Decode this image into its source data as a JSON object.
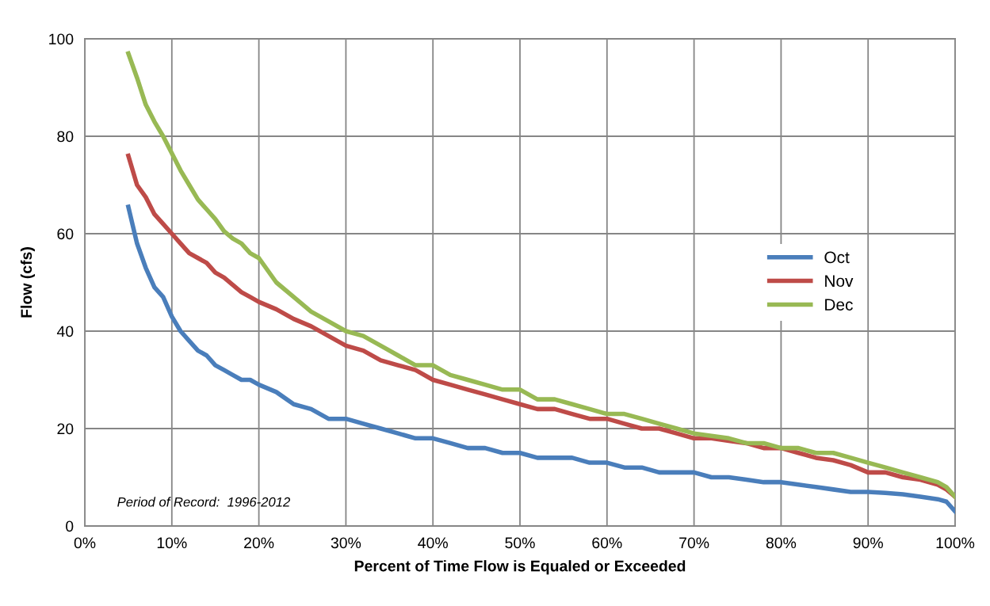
{
  "chart_data": {
    "type": "line",
    "xlabel": "Percent of Time Flow is Equaled or Exceeded",
    "ylabel": "Flow (cfs)",
    "x": [
      5,
      6,
      7,
      8,
      9,
      10,
      11,
      12,
      13,
      14,
      15,
      16,
      17,
      18,
      19,
      20,
      22,
      24,
      26,
      28,
      30,
      32,
      34,
      36,
      38,
      40,
      42,
      44,
      46,
      48,
      50,
      52,
      54,
      56,
      58,
      60,
      62,
      64,
      66,
      68,
      70,
      72,
      74,
      76,
      78,
      80,
      82,
      84,
      86,
      88,
      90,
      92,
      94,
      96,
      98,
      99,
      100
    ],
    "series": [
      {
        "name": "Oct",
        "color": "#4a7ebb",
        "values": [
          65.5,
          58,
          53,
          49,
          47,
          43,
          40,
          38,
          36,
          35,
          33,
          32,
          31,
          30,
          30,
          29,
          27.5,
          25,
          24,
          22,
          22,
          21,
          20,
          19,
          18,
          18,
          17,
          16,
          16,
          15,
          15,
          14,
          14,
          14,
          13,
          13,
          12,
          12,
          11,
          11,
          11,
          10,
          10,
          9.5,
          9,
          9,
          8.5,
          8,
          7.5,
          7,
          7,
          6.8,
          6.5,
          6,
          5.5,
          5,
          3
        ]
      },
      {
        "name": "Nov",
        "color": "#be4b48",
        "values": [
          76,
          70,
          67.5,
          64,
          62,
          60,
          58,
          56,
          55,
          54,
          52,
          51,
          49.5,
          48,
          47,
          46,
          44.5,
          42.5,
          41,
          39,
          37,
          36,
          34,
          33,
          32,
          30,
          29,
          28,
          27,
          26,
          25,
          24,
          24,
          23,
          22,
          22,
          21,
          20,
          20,
          19,
          18,
          18,
          17.5,
          17,
          16,
          16,
          15,
          14,
          13.5,
          12.5,
          11,
          11,
          10,
          9.5,
          8.5,
          7.5,
          6
        ]
      },
      {
        "name": "Dec",
        "color": "#98b954",
        "values": [
          97,
          92,
          86.5,
          83,
          80,
          76.5,
          73,
          70,
          67,
          65,
          63,
          60.5,
          59,
          58,
          56,
          55,
          50,
          47,
          44,
          42,
          40,
          39,
          37,
          35,
          33,
          33,
          31,
          30,
          29,
          28,
          28,
          26,
          26,
          25,
          24,
          23,
          23,
          22,
          21,
          20,
          19,
          18.5,
          18,
          17,
          17,
          16,
          16,
          15,
          15,
          14,
          13,
          12,
          11,
          10,
          9,
          8,
          6
        ]
      }
    ],
    "xlim": [
      0,
      100
    ],
    "xticks": [
      {
        "value": 0,
        "label": "0%"
      },
      {
        "value": 10,
        "label": "10%"
      },
      {
        "value": 20,
        "label": "20%"
      },
      {
        "value": 30,
        "label": "30%"
      },
      {
        "value": 40,
        "label": "40%"
      },
      {
        "value": 50,
        "label": "50%"
      },
      {
        "value": 60,
        "label": "60%"
      },
      {
        "value": 70,
        "label": "70%"
      },
      {
        "value": 80,
        "label": "80%"
      },
      {
        "value": 90,
        "label": "90%"
      },
      {
        "value": 100,
        "label": "100%"
      }
    ],
    "ylim": [
      0,
      100
    ],
    "yticks": [
      0,
      20,
      40,
      60,
      80,
      100
    ],
    "annotations": [
      "Period of Record:  1996-2012"
    ],
    "grid": true,
    "legend": "center right",
    "marker": "none",
    "line_style": "solid"
  }
}
